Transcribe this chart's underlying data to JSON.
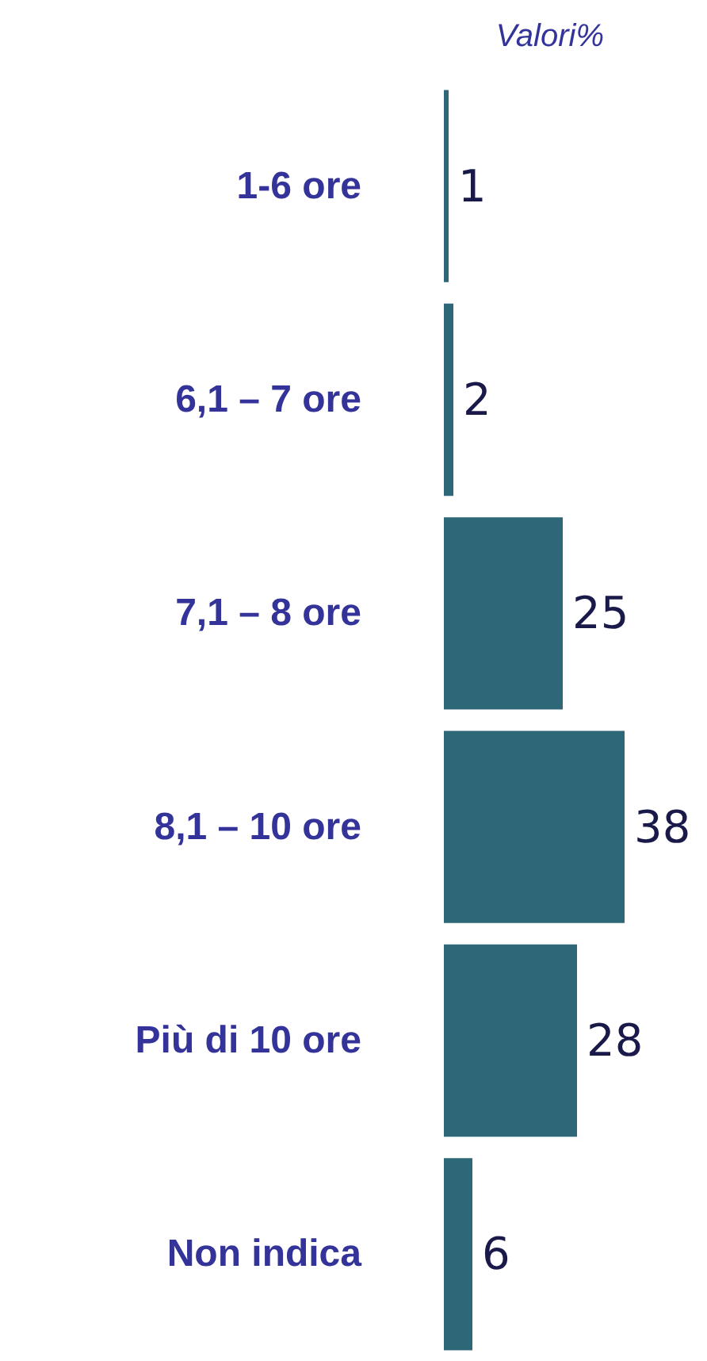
{
  "chart_data": {
    "type": "bar",
    "orientation": "horizontal",
    "title": "Valori%",
    "categories": [
      "1-6 ore",
      "6,1 – 7 ore",
      "7,1 – 8 ore",
      "8,1 – 10 ore",
      "Più di 10 ore",
      "Non indica"
    ],
    "values": [
      1,
      2,
      25,
      38,
      28,
      6
    ],
    "color": "#2e6878",
    "data_labels": true
  }
}
